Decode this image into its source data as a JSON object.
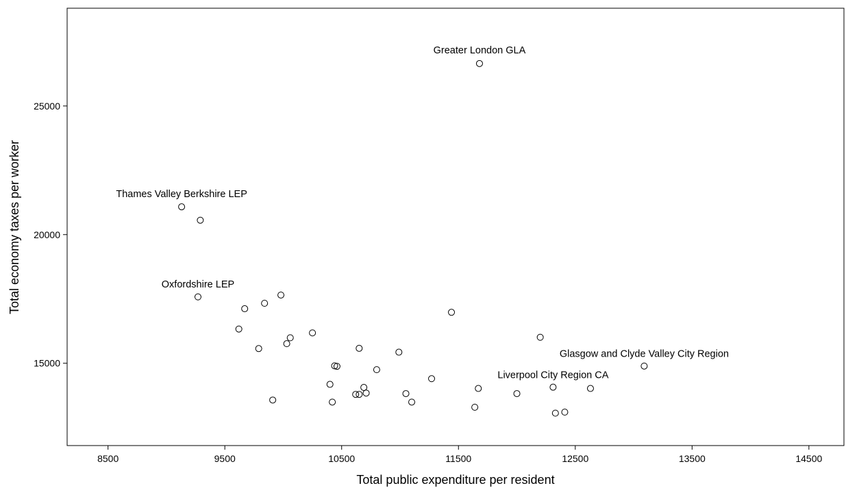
{
  "chart_data": {
    "type": "scatter",
    "title": "",
    "xlabel": "Total public expenditure per resident",
    "ylabel": "Total economy taxes per worker",
    "xlim": [
      8150,
      14800
    ],
    "ylim": [
      11800,
      28800
    ],
    "xticks": [
      8500,
      9500,
      10500,
      11500,
      12500,
      13500,
      14500
    ],
    "yticks": [
      15000,
      20000,
      25000
    ],
    "grid": false,
    "legend": "none",
    "marker": "open-circle",
    "points": [
      {
        "x": 11680,
        "y": 26650
      },
      {
        "x": 9130,
        "y": 21080
      },
      {
        "x": 9290,
        "y": 20560
      },
      {
        "x": 9270,
        "y": 17580
      },
      {
        "x": 9670,
        "y": 17120
      },
      {
        "x": 9840,
        "y": 17330
      },
      {
        "x": 9980,
        "y": 17650
      },
      {
        "x": 11440,
        "y": 16980
      },
      {
        "x": 9620,
        "y": 16330
      },
      {
        "x": 10250,
        "y": 16180
      },
      {
        "x": 10060,
        "y": 15990
      },
      {
        "x": 10030,
        "y": 15760
      },
      {
        "x": 9790,
        "y": 15570
      },
      {
        "x": 10650,
        "y": 15580
      },
      {
        "x": 10990,
        "y": 15430
      },
      {
        "x": 12200,
        "y": 16010
      },
      {
        "x": 13090,
        "y": 14890
      },
      {
        "x": 10440,
        "y": 14900
      },
      {
        "x": 10460,
        "y": 14880
      },
      {
        "x": 10800,
        "y": 14750
      },
      {
        "x": 11270,
        "y": 14400
      },
      {
        "x": 10400,
        "y": 14180
      },
      {
        "x": 10690,
        "y": 14060
      },
      {
        "x": 11670,
        "y": 14020
      },
      {
        "x": 12310,
        "y": 14070
      },
      {
        "x": 12630,
        "y": 14020
      },
      {
        "x": 10620,
        "y": 13790
      },
      {
        "x": 10650,
        "y": 13790
      },
      {
        "x": 10710,
        "y": 13840
      },
      {
        "x": 11050,
        "y": 13820
      },
      {
        "x": 12000,
        "y": 13820
      },
      {
        "x": 9910,
        "y": 13570
      },
      {
        "x": 10420,
        "y": 13490
      },
      {
        "x": 11100,
        "y": 13490
      },
      {
        "x": 11640,
        "y": 13290
      },
      {
        "x": 12330,
        "y": 13060
      },
      {
        "x": 12410,
        "y": 13100
      }
    ],
    "annotations": [
      {
        "text": "Greater London GLA",
        "x": 11680,
        "y": 27050
      },
      {
        "text": "Thames Valley Berkshire LEP",
        "x": 9130,
        "y": 21460
      },
      {
        "text": "Oxfordshire LEP",
        "x": 9270,
        "y": 17950
      },
      {
        "text": "Glasgow and Clyde Valley City Region",
        "x": 13090,
        "y": 15250
      },
      {
        "text": "Liverpool City Region CA",
        "x": 12310,
        "y": 14420
      }
    ]
  }
}
